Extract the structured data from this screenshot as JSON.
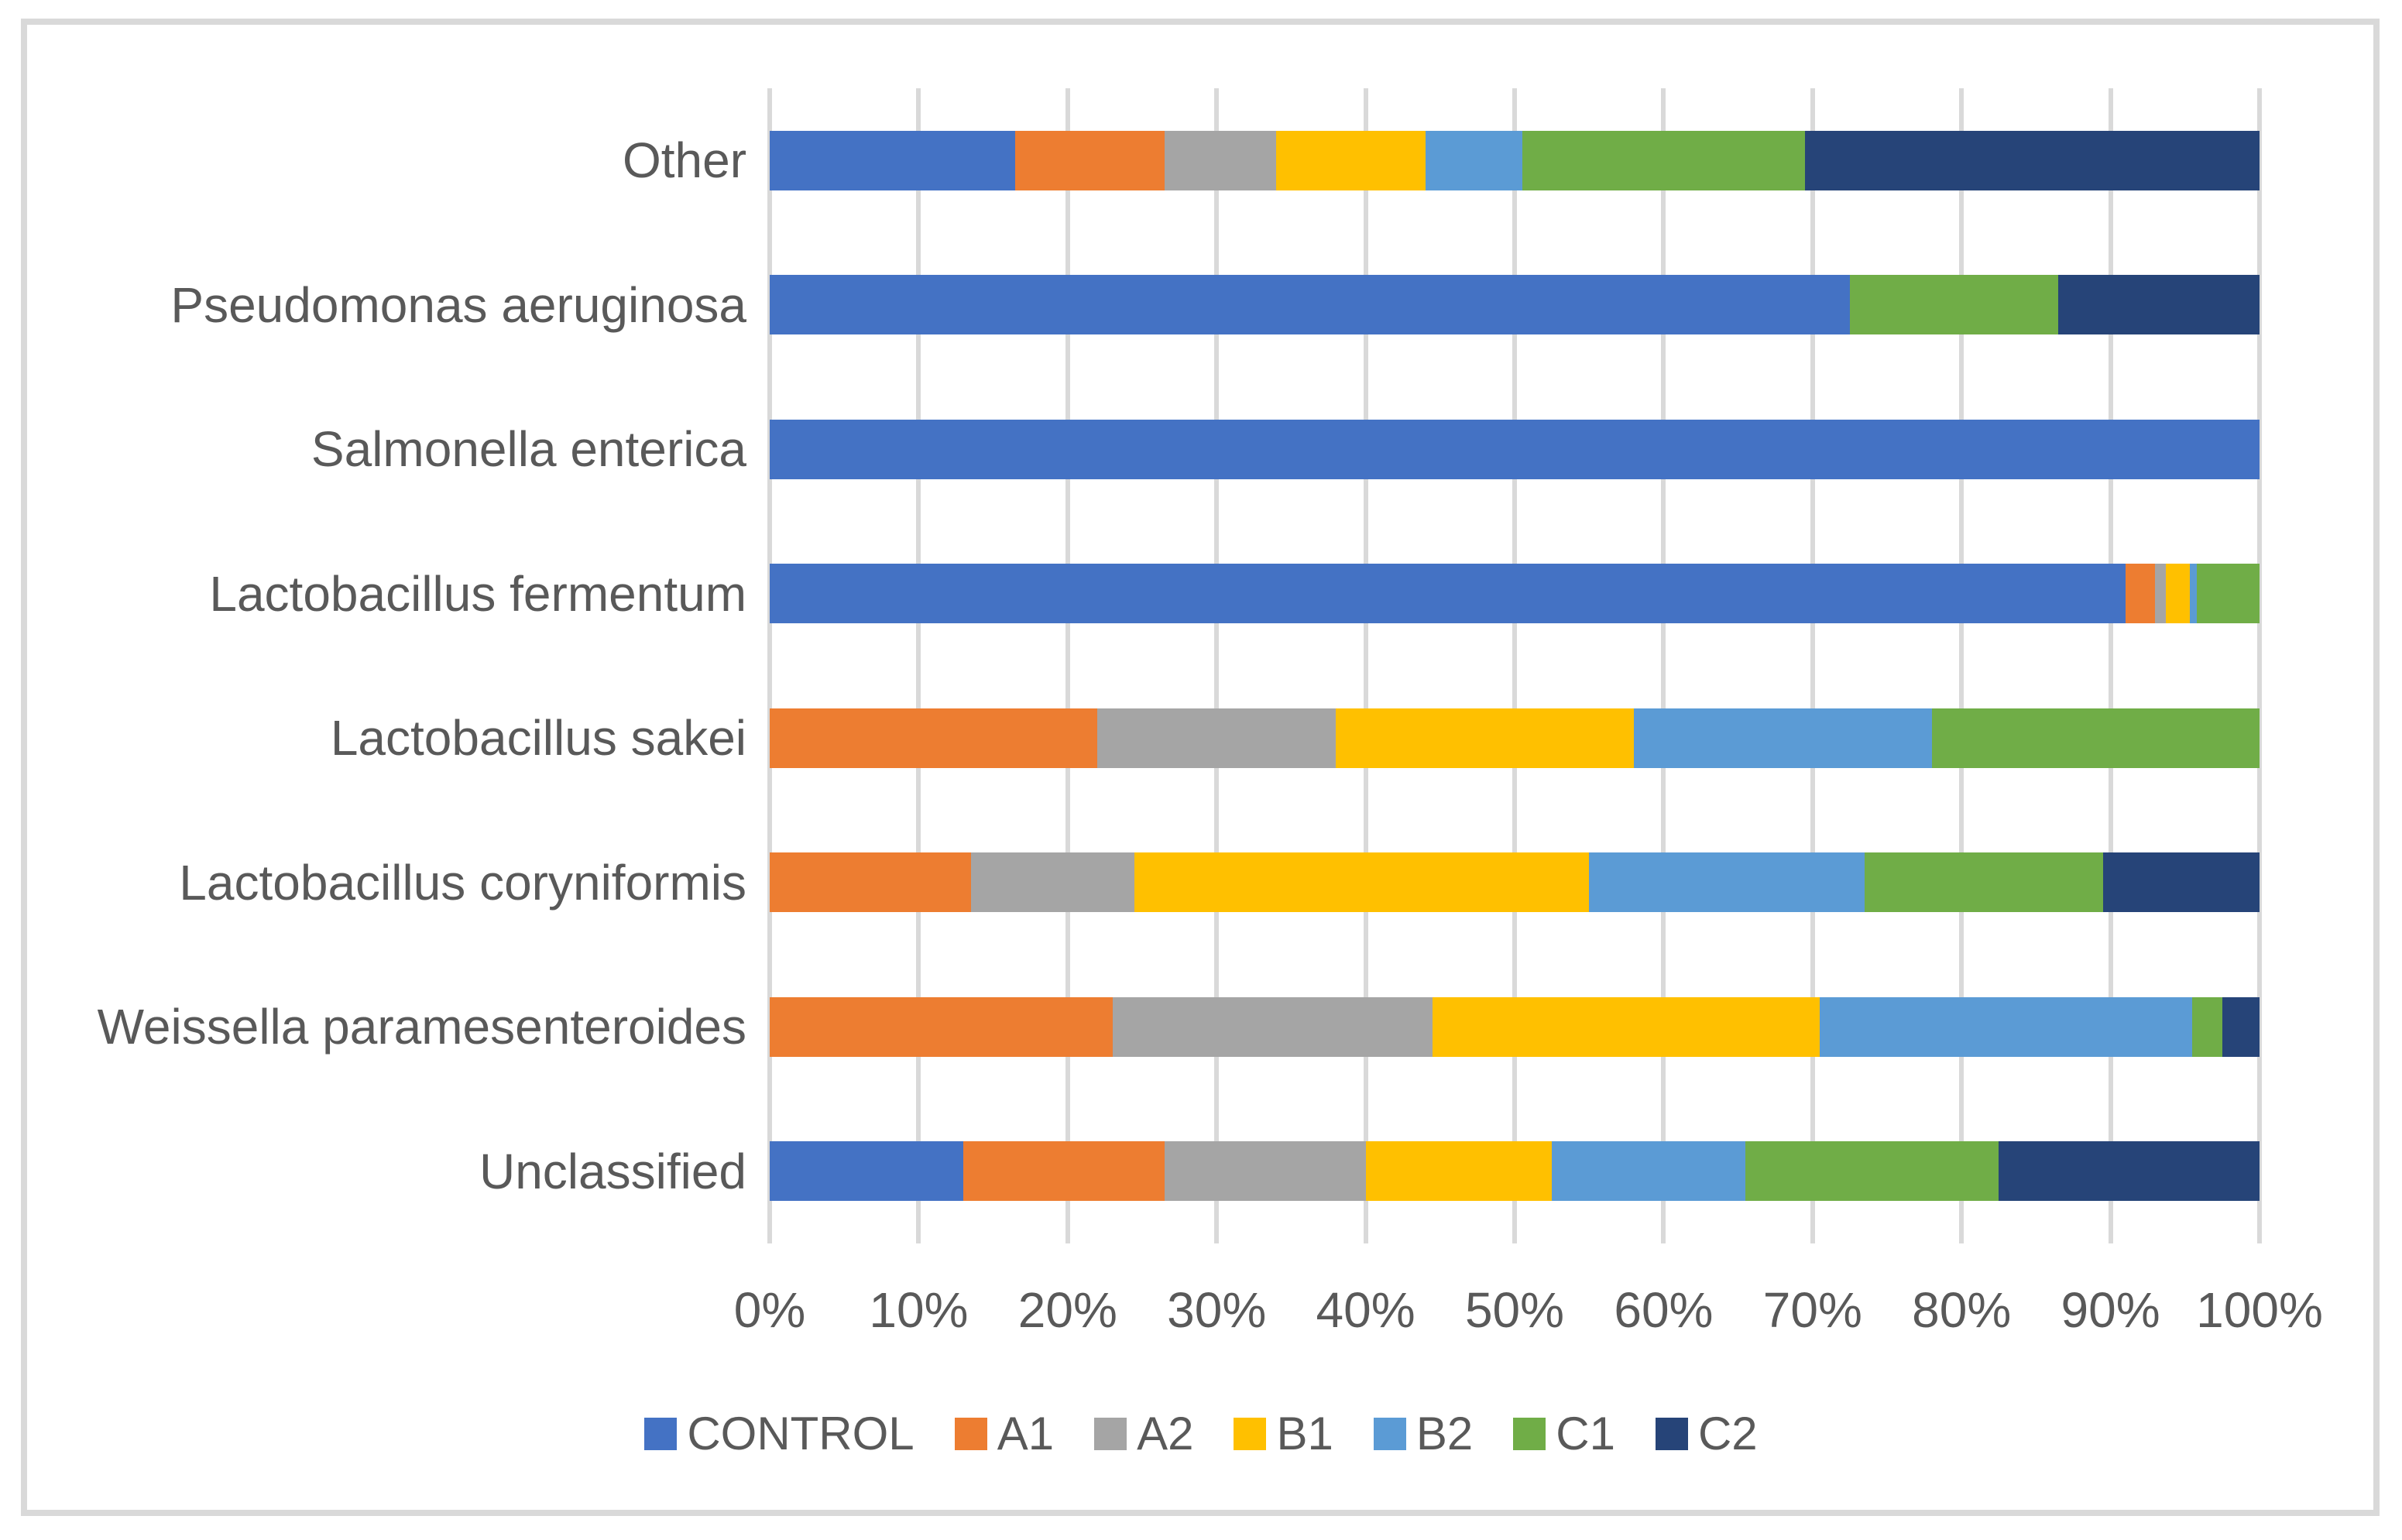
{
  "chart_data": {
    "type": "bar",
    "orientation": "horizontal",
    "stacked": true,
    "unit": "percent",
    "title": "",
    "xlabel": "",
    "ylabel": "",
    "xlim": [
      0,
      100
    ],
    "grid": true,
    "legend_position": "bottom",
    "categories": [
      "Other",
      "Pseudomonas aeruginosa",
      "Salmonella enterica",
      "Lactobacillus fermentum",
      "Lactobacillus sakei",
      "Lactobacillus coryniformis",
      "Weissella paramesenteroides",
      "Unclassified"
    ],
    "series": [
      {
        "name": "CONTROL",
        "color": "#4472C4",
        "values": [
          16.5,
          72.5,
          100,
          91.0,
          0,
          0,
          0,
          13.0
        ]
      },
      {
        "name": "A1",
        "color": "#ED7D31",
        "values": [
          10.0,
          0,
          0,
          2.0,
          22.0,
          13.5,
          23.0,
          13.5
        ]
      },
      {
        "name": "A2",
        "color": "#A5A5A5",
        "values": [
          7.5,
          0,
          0,
          0.7,
          16.0,
          11.0,
          21.5,
          13.5
        ]
      },
      {
        "name": "B1",
        "color": "#FFC000",
        "values": [
          10.0,
          0,
          0,
          1.6,
          20.0,
          30.5,
          26.0,
          12.5
        ]
      },
      {
        "name": "B2",
        "color": "#5B9BD5",
        "values": [
          6.5,
          0,
          0,
          0.5,
          20.0,
          18.5,
          25.0,
          13.0
        ]
      },
      {
        "name": "C1",
        "color": "#70AD47",
        "values": [
          19.0,
          14.0,
          0,
          4.2,
          22.0,
          16.0,
          2.0,
          17.0
        ]
      },
      {
        "name": "C2",
        "color": "#264478",
        "values": [
          30.5,
          13.5,
          0,
          0,
          0,
          10.5,
          2.5,
          17.5
        ]
      }
    ],
    "x_ticks": [
      "0%",
      "10%",
      "20%",
      "30%",
      "40%",
      "50%",
      "60%",
      "70%",
      "80%",
      "90%",
      "100%"
    ]
  },
  "styles": {
    "gridline_color": "#D9D9D9",
    "border_color": "#D9D9D9",
    "text_color": "#595959",
    "background": "#FFFFFF"
  }
}
